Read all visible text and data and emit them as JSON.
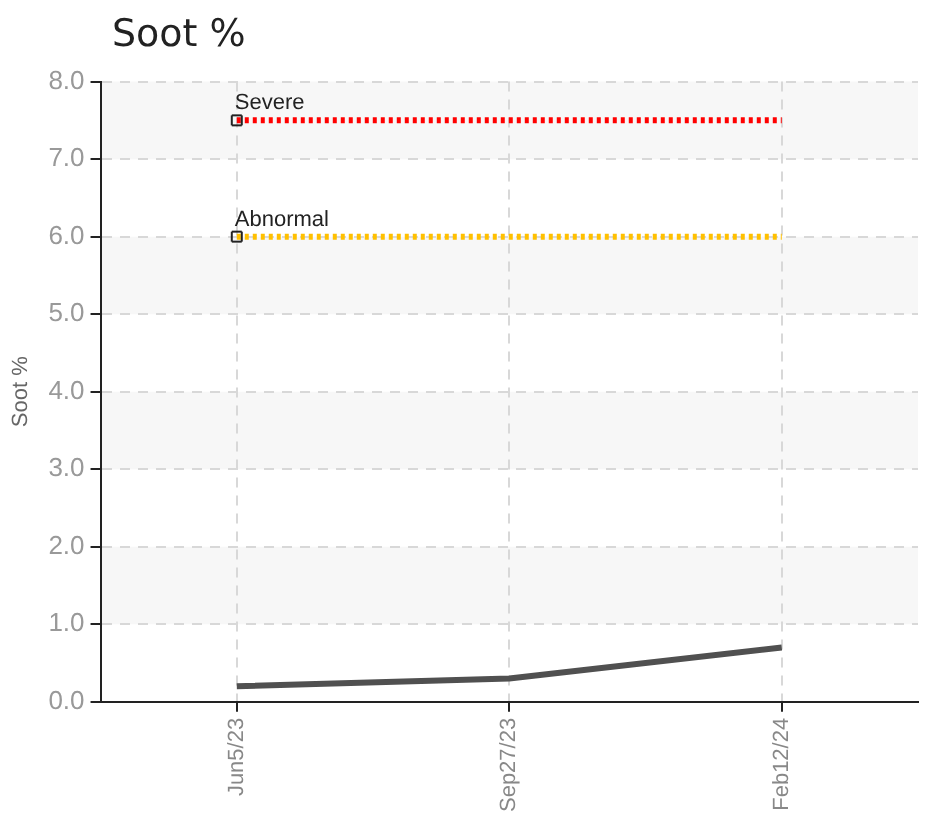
{
  "chart_data": {
    "type": "line",
    "title": "Soot %",
    "ylabel": "Soot %",
    "categories": [
      "Jun5/23",
      "Sep27/23",
      "Feb12/24"
    ],
    "series": [
      {
        "color": "#505050",
        "values": [
          0.2,
          0.3,
          0.7
        ]
      }
    ],
    "ylim": [
      0,
      8
    ],
    "yticks": [
      {
        "value": 0,
        "label": "0.0"
      },
      {
        "value": 1,
        "label": "1.0"
      },
      {
        "value": 2,
        "label": "2.0"
      },
      {
        "value": 3,
        "label": "3.0"
      },
      {
        "value": 4,
        "label": "4.0"
      },
      {
        "value": 5,
        "label": "5.0"
      },
      {
        "value": 6,
        "label": "6.0"
      },
      {
        "value": 7,
        "label": "7.0"
      },
      {
        "value": 8,
        "label": "8.0"
      }
    ],
    "ref_lines": [
      {
        "axis": "y",
        "value": 7.5,
        "label": "Severe",
        "color": "#ff0000",
        "line_style": "dotted"
      },
      {
        "axis": "y",
        "value": 6,
        "label": "Abnormal",
        "color": "#ffc000",
        "line_style": "dotted"
      }
    ],
    "grid": true,
    "legend": false,
    "marker": "none",
    "line_style": "solid"
  }
}
